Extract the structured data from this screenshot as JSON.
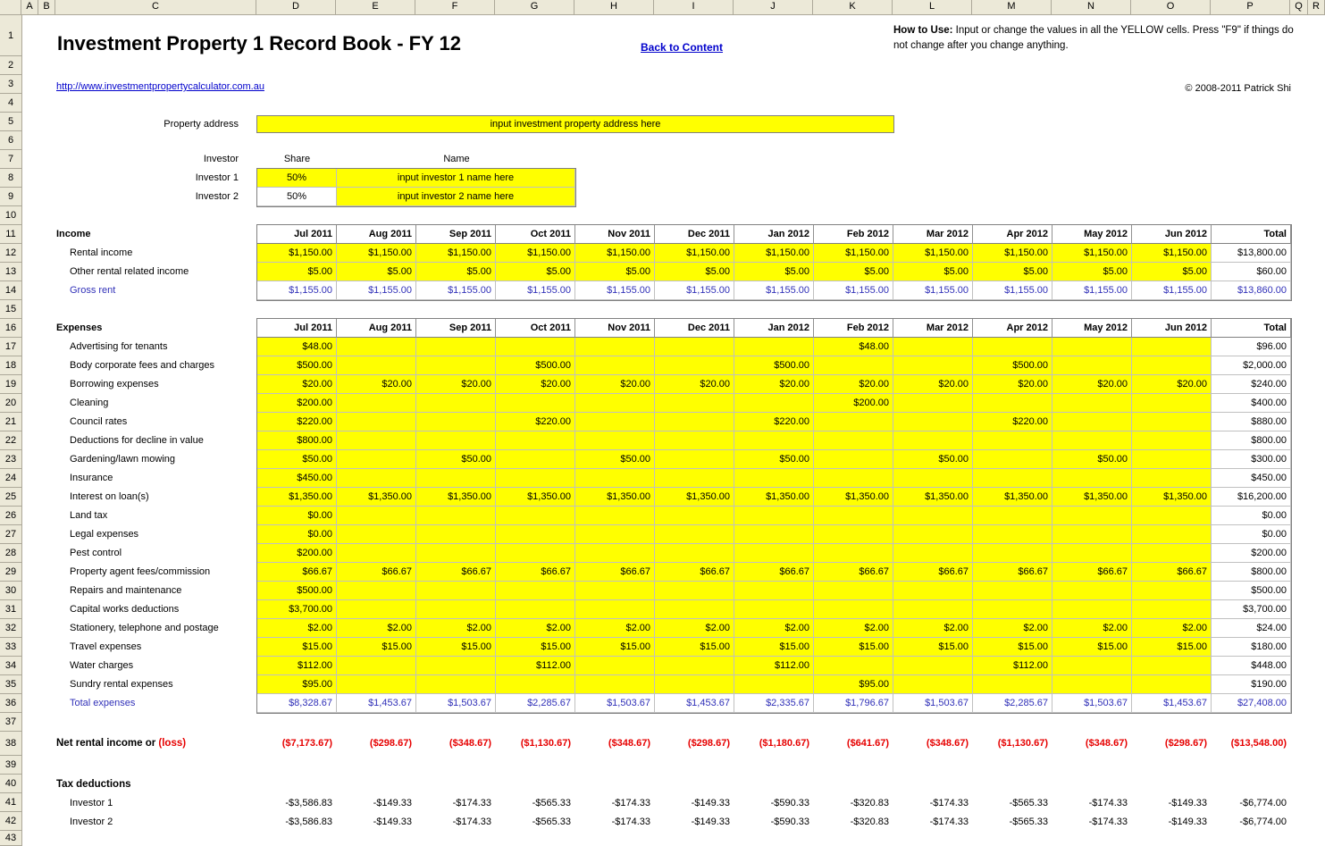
{
  "colors": {
    "input_cell": "#ffff00",
    "formula_blue": "#3030b8",
    "negative_red": "#e60000",
    "link_blue": "#0000cc",
    "header_bg": "#ece9d8"
  },
  "grid": {
    "column_labels": [
      "A",
      "B",
      "C",
      "D",
      "E",
      "F",
      "G",
      "H",
      "I",
      "J",
      "K",
      "L",
      "M",
      "N",
      "O",
      "P",
      "Q",
      "R"
    ],
    "row_count": 43
  },
  "header": {
    "title": "Investment Property 1 Record Book - FY 12",
    "back_link": "Back to Content",
    "how_to_use_bold": "How to Use:",
    "how_to_use_rest": " Input or change the values in all the YELLOW cells. Press \"F9\" if things do not change after you change anything.",
    "url": "http://www.investmentpropertycalculator.com.au",
    "copyright": "© 2008-2011 Patrick Shi"
  },
  "property": {
    "label": "Property address",
    "value": "input investment property address here"
  },
  "investors": {
    "col_investor": "Investor",
    "col_share": "Share",
    "col_name": "Name",
    "rows": [
      {
        "label": "Investor 1",
        "share": "50%",
        "name": "input investor 1 name here",
        "share_input": true
      },
      {
        "label": "Investor 2",
        "share": "50%",
        "name": "input investor 2 name here",
        "share_input": false
      }
    ]
  },
  "months": [
    "Jul 2011",
    "Aug 2011",
    "Sep 2011",
    "Oct 2011",
    "Nov 2011",
    "Dec 2011",
    "Jan 2012",
    "Feb 2012",
    "Mar 2012",
    "Apr 2012",
    "May 2012",
    "Jun 2012"
  ],
  "total_label": "Total",
  "income": {
    "section_label": "Income",
    "rows": [
      {
        "label": "Rental income",
        "style": "yellow",
        "values": [
          "$1,150.00",
          "$1,150.00",
          "$1,150.00",
          "$1,150.00",
          "$1,150.00",
          "$1,150.00",
          "$1,150.00",
          "$1,150.00",
          "$1,150.00",
          "$1,150.00",
          "$1,150.00",
          "$1,150.00"
        ],
        "total": "$13,800.00"
      },
      {
        "label": "Other rental related income",
        "style": "yellow",
        "values": [
          "$5.00",
          "$5.00",
          "$5.00",
          "$5.00",
          "$5.00",
          "$5.00",
          "$5.00",
          "$5.00",
          "$5.00",
          "$5.00",
          "$5.00",
          "$5.00"
        ],
        "total": "$60.00"
      },
      {
        "label": "Gross rent",
        "style": "blue",
        "values": [
          "$1,155.00",
          "$1,155.00",
          "$1,155.00",
          "$1,155.00",
          "$1,155.00",
          "$1,155.00",
          "$1,155.00",
          "$1,155.00",
          "$1,155.00",
          "$1,155.00",
          "$1,155.00",
          "$1,155.00"
        ],
        "total": "$13,860.00"
      }
    ]
  },
  "expenses": {
    "section_label": "Expenses",
    "rows": [
      {
        "label": "Advertising for tenants",
        "style": "yellow",
        "values": [
          "$48.00",
          "",
          "",
          "",
          "",
          "",
          "",
          "$48.00",
          "",
          "",
          "",
          ""
        ],
        "total": "$96.00"
      },
      {
        "label": "Body corporate fees and charges",
        "style": "yellow",
        "values": [
          "$500.00",
          "",
          "",
          "$500.00",
          "",
          "",
          "$500.00",
          "",
          "",
          "$500.00",
          "",
          ""
        ],
        "total": "$2,000.00"
      },
      {
        "label": "Borrowing expenses",
        "style": "yellow",
        "values": [
          "$20.00",
          "$20.00",
          "$20.00",
          "$20.00",
          "$20.00",
          "$20.00",
          "$20.00",
          "$20.00",
          "$20.00",
          "$20.00",
          "$20.00",
          "$20.00"
        ],
        "total": "$240.00"
      },
      {
        "label": "Cleaning",
        "style": "yellow",
        "values": [
          "$200.00",
          "",
          "",
          "",
          "",
          "",
          "",
          "$200.00",
          "",
          "",
          "",
          ""
        ],
        "total": "$400.00"
      },
      {
        "label": "Council rates",
        "style": "yellow",
        "values": [
          "$220.00",
          "",
          "",
          "$220.00",
          "",
          "",
          "$220.00",
          "",
          "",
          "$220.00",
          "",
          ""
        ],
        "total": "$880.00"
      },
      {
        "label": "Deductions for decline in value",
        "style": "yellow",
        "values": [
          "$800.00",
          "",
          "",
          "",
          "",
          "",
          "",
          "",
          "",
          "",
          "",
          ""
        ],
        "total": "$800.00"
      },
      {
        "label": "Gardening/lawn mowing",
        "style": "yellow",
        "values": [
          "$50.00",
          "",
          "$50.00",
          "",
          "$50.00",
          "",
          "$50.00",
          "",
          "$50.00",
          "",
          "$50.00",
          ""
        ],
        "total": "$300.00"
      },
      {
        "label": "Insurance",
        "style": "yellow",
        "values": [
          "$450.00",
          "",
          "",
          "",
          "",
          "",
          "",
          "",
          "",
          "",
          "",
          ""
        ],
        "total": "$450.00"
      },
      {
        "label": "Interest on loan(s)",
        "style": "yellow",
        "values": [
          "$1,350.00",
          "$1,350.00",
          "$1,350.00",
          "$1,350.00",
          "$1,350.00",
          "$1,350.00",
          "$1,350.00",
          "$1,350.00",
          "$1,350.00",
          "$1,350.00",
          "$1,350.00",
          "$1,350.00"
        ],
        "total": "$16,200.00"
      },
      {
        "label": "Land tax",
        "style": "yellow",
        "values": [
          "$0.00",
          "",
          "",
          "",
          "",
          "",
          "",
          "",
          "",
          "",
          "",
          ""
        ],
        "total": "$0.00"
      },
      {
        "label": "Legal expenses",
        "style": "yellow",
        "values": [
          "$0.00",
          "",
          "",
          "",
          "",
          "",
          "",
          "",
          "",
          "",
          "",
          ""
        ],
        "total": "$0.00"
      },
      {
        "label": "Pest control",
        "style": "yellow",
        "values": [
          "$200.00",
          "",
          "",
          "",
          "",
          "",
          "",
          "",
          "",
          "",
          "",
          ""
        ],
        "total": "$200.00"
      },
      {
        "label": "Property agent fees/commission",
        "style": "yellow",
        "values": [
          "$66.67",
          "$66.67",
          "$66.67",
          "$66.67",
          "$66.67",
          "$66.67",
          "$66.67",
          "$66.67",
          "$66.67",
          "$66.67",
          "$66.67",
          "$66.67"
        ],
        "total": "$800.00"
      },
      {
        "label": "Repairs and maintenance",
        "style": "yellow",
        "values": [
          "$500.00",
          "",
          "",
          "",
          "",
          "",
          "",
          "",
          "",
          "",
          "",
          ""
        ],
        "total": "$500.00"
      },
      {
        "label": "Capital works deductions",
        "style": "yellow",
        "values": [
          "$3,700.00",
          "",
          "",
          "",
          "",
          "",
          "",
          "",
          "",
          "",
          "",
          ""
        ],
        "total": "$3,700.00"
      },
      {
        "label": "Stationery, telephone and postage",
        "style": "yellow",
        "values": [
          "$2.00",
          "$2.00",
          "$2.00",
          "$2.00",
          "$2.00",
          "$2.00",
          "$2.00",
          "$2.00",
          "$2.00",
          "$2.00",
          "$2.00",
          "$2.00"
        ],
        "total": "$24.00"
      },
      {
        "label": "Travel expenses",
        "style": "yellow",
        "values": [
          "$15.00",
          "$15.00",
          "$15.00",
          "$15.00",
          "$15.00",
          "$15.00",
          "$15.00",
          "$15.00",
          "$15.00",
          "$15.00",
          "$15.00",
          "$15.00"
        ],
        "total": "$180.00"
      },
      {
        "label": "Water charges",
        "style": "yellow",
        "values": [
          "$112.00",
          "",
          "",
          "$112.00",
          "",
          "",
          "$112.00",
          "",
          "",
          "$112.00",
          "",
          ""
        ],
        "total": "$448.00"
      },
      {
        "label": "Sundry rental expenses",
        "style": "yellow",
        "values": [
          "$95.00",
          "",
          "",
          "",
          "",
          "",
          "",
          "$95.00",
          "",
          "",
          "",
          ""
        ],
        "total": "$190.00"
      },
      {
        "label": "Total expenses",
        "style": "blue",
        "values": [
          "$8,328.67",
          "$1,453.67",
          "$1,503.67",
          "$2,285.67",
          "$1,503.67",
          "$1,453.67",
          "$2,335.67",
          "$1,796.67",
          "$1,503.67",
          "$2,285.67",
          "$1,503.67",
          "$1,453.67"
        ],
        "total": "$27,408.00"
      }
    ]
  },
  "net": {
    "label_black": "Net rental income or ",
    "label_red": "(loss)",
    "values": [
      "($7,173.67)",
      "($298.67)",
      "($348.67)",
      "($1,130.67)",
      "($348.67)",
      "($298.67)",
      "($1,180.67)",
      "($641.67)",
      "($348.67)",
      "($1,130.67)",
      "($348.67)",
      "($298.67)"
    ],
    "total": "($13,548.00)"
  },
  "tax": {
    "section_label": "Tax deductions",
    "rows": [
      {
        "label": "Investor 1",
        "values": [
          "-$3,586.83",
          "-$149.33",
          "-$174.33",
          "-$565.33",
          "-$174.33",
          "-$149.33",
          "-$590.33",
          "-$320.83",
          "-$174.33",
          "-$565.33",
          "-$174.33",
          "-$149.33"
        ],
        "total": "-$6,774.00"
      },
      {
        "label": "Investor 2",
        "values": [
          "-$3,586.83",
          "-$149.33",
          "-$174.33",
          "-$565.33",
          "-$174.33",
          "-$149.33",
          "-$590.33",
          "-$320.83",
          "-$174.33",
          "-$565.33",
          "-$174.33",
          "-$149.33"
        ],
        "total": "-$6,774.00"
      }
    ]
  }
}
